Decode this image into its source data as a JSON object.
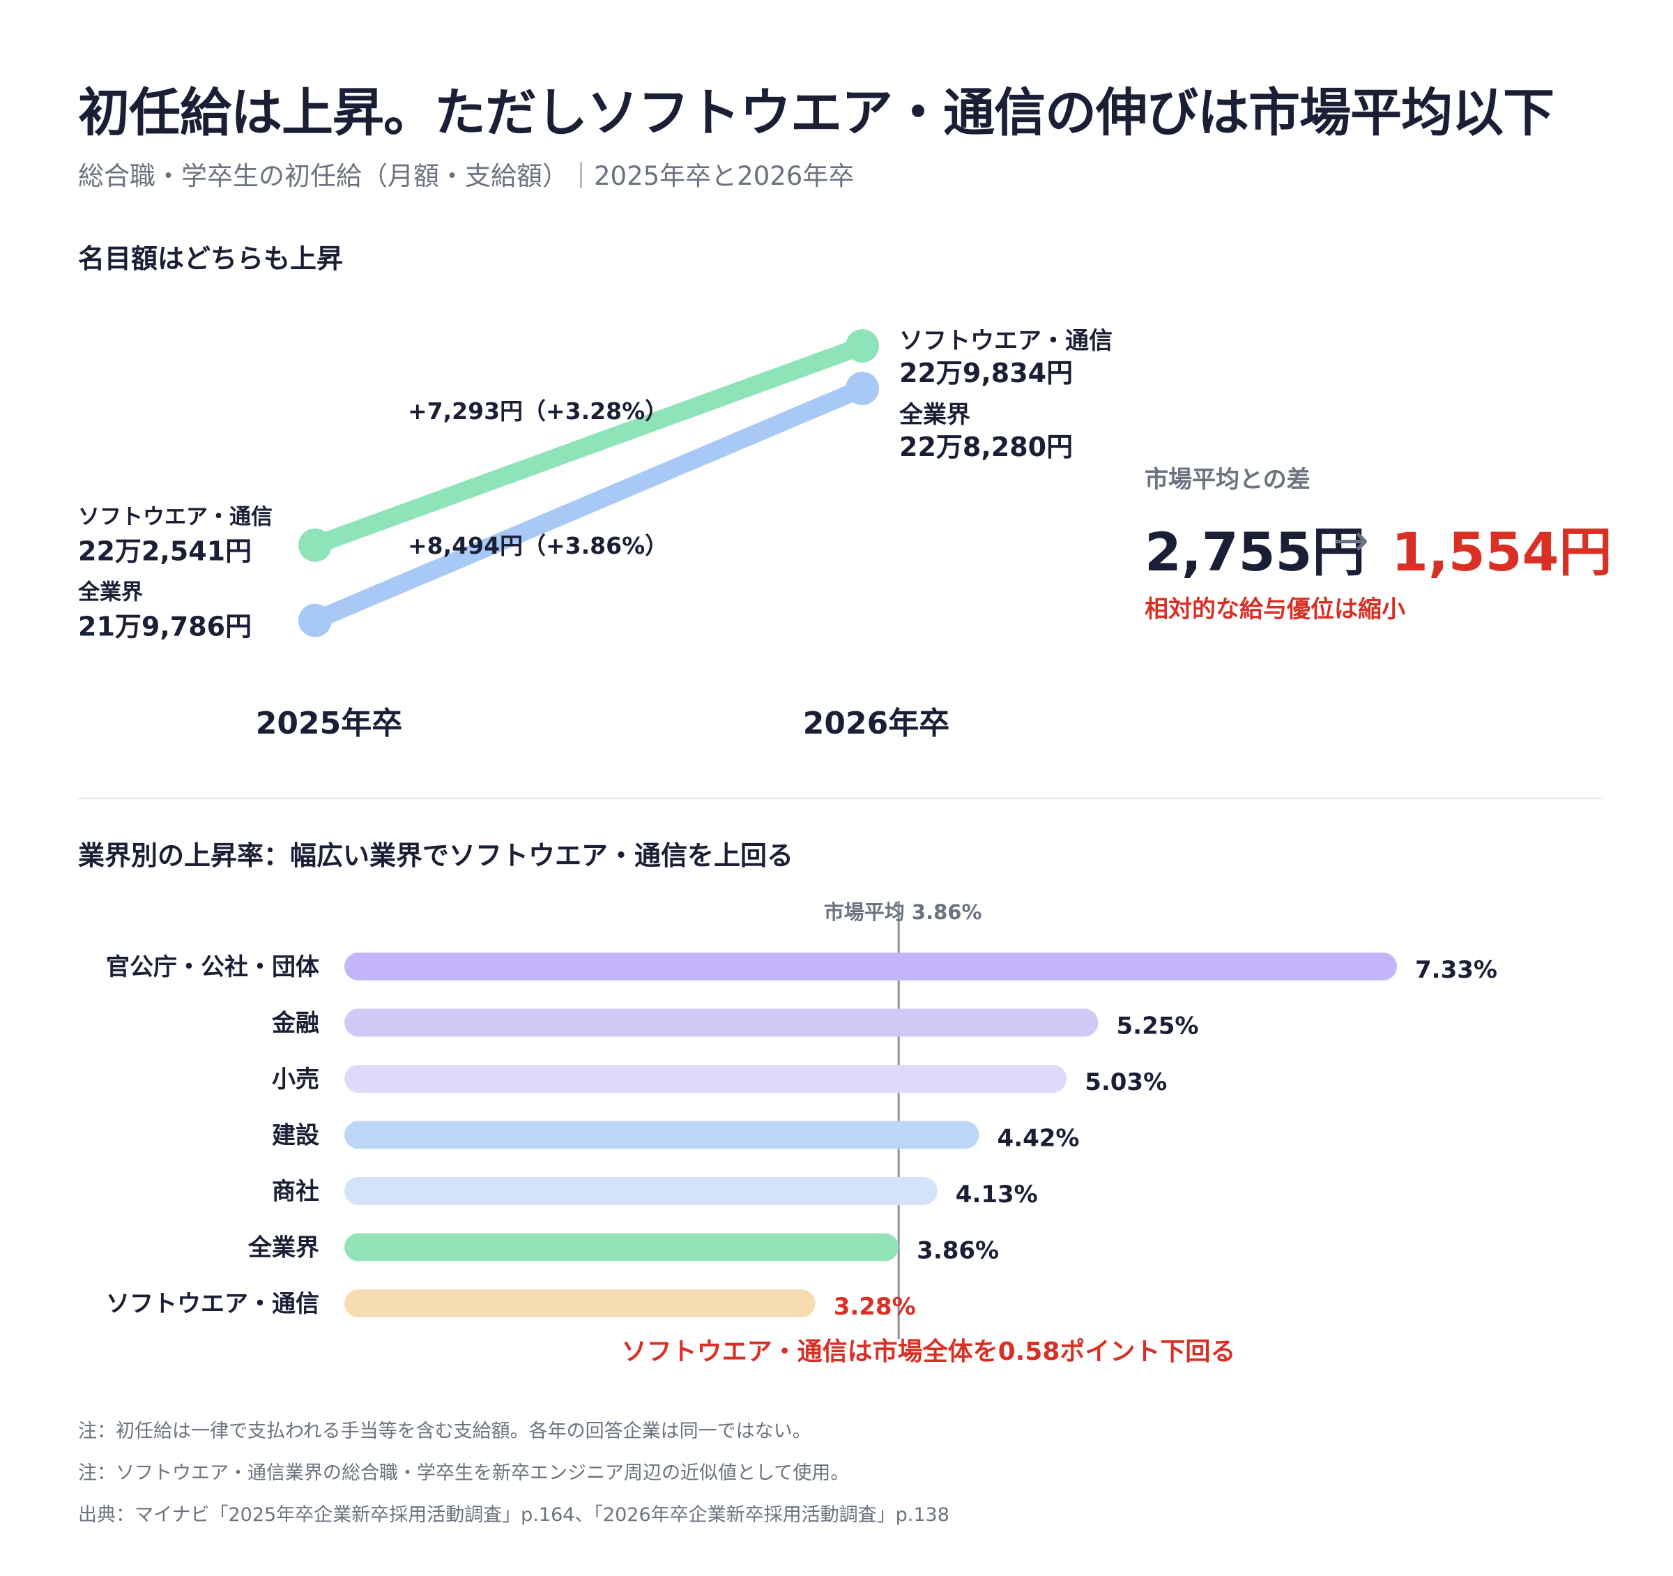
{
  "header": {
    "title": "初任給は上昇。ただしソフトウエア・通信の伸びは市場平均以下",
    "subtitle": "総合職・学卒生の初任給（月額・支給額）｜2025年卒と2026年卒"
  },
  "section1": {
    "title": "名目額はどちらも上昇"
  },
  "section2": {
    "title": "業界別の上昇率：幅広い業界でソフトウエア・通信を上回る"
  },
  "market_gap": {
    "label": "市場平均との差",
    "before": "2,755円",
    "arrow": "→",
    "after": "1,554円",
    "caption": "相対的な給与優位は縮小"
  },
  "notes": [
    "注：初任給は一律で支払われる手当等を含む支給額。各年の回答企業は同一ではない。",
    "注：ソフトウエア・通信業界の総合職・学卒生を新卒エンジニア周辺の近似値として使用。",
    "出典：マイナビ「2025年卒企業新卒採用活動調査」p.164、「2026年卒企業新卒採用活動調査」p.138"
  ],
  "colors": {
    "software": "#8fe3b8",
    "all": "#a8c8f5",
    "highlight_red": "#d93025",
    "axis_gray": "#8a8f99"
  },
  "chart_data": [
    {
      "type": "line",
      "title": "名目額はどちらも上昇",
      "x": [
        "2025年卒",
        "2026年卒"
      ],
      "series": [
        {
          "name": "ソフトウエア・通信",
          "values": [
            222541,
            229834
          ],
          "labels": [
            "22万2,541円",
            "22万9,834円"
          ],
          "change_label": "+7,293円（+3.28%）",
          "color": "#8fe3b8"
        },
        {
          "name": "全業界",
          "values": [
            219786,
            228280
          ],
          "labels": [
            "21万9,786円",
            "22万8,280円"
          ],
          "change_label": "+8,494円（+3.86%）",
          "color": "#a8c8f5"
        }
      ],
      "ylim": [
        218500,
        230500
      ],
      "grid": false
    },
    {
      "type": "bar",
      "orientation": "horizontal",
      "title": "業界別の上昇率：幅広い業界でソフトウエア・通信を上回る",
      "categories": [
        "官公庁・公社・団体",
        "金融",
        "小売",
        "建設",
        "商社",
        "全業界",
        "ソフトウエア・通信"
      ],
      "values": [
        7.33,
        5.25,
        5.03,
        4.42,
        4.13,
        3.86,
        3.28
      ],
      "value_labels": [
        "7.33%",
        "5.25%",
        "5.03%",
        "4.42%",
        "4.13%",
        "3.86%",
        "3.28%"
      ],
      "colors": [
        "#c3b5f7",
        "#d2c9f8",
        "#e0d9fb",
        "#bcd6f6",
        "#d3e3f9",
        "#94e3b6",
        "#f6dcb0"
      ],
      "reference_line": {
        "value": 3.86,
        "label": "市場平均 3.86%"
      },
      "annotation": "ソフトウエア・通信は市場全体を0.58ポイント下回る",
      "xlim": [
        0,
        7.33
      ],
      "grid": false
    }
  ]
}
